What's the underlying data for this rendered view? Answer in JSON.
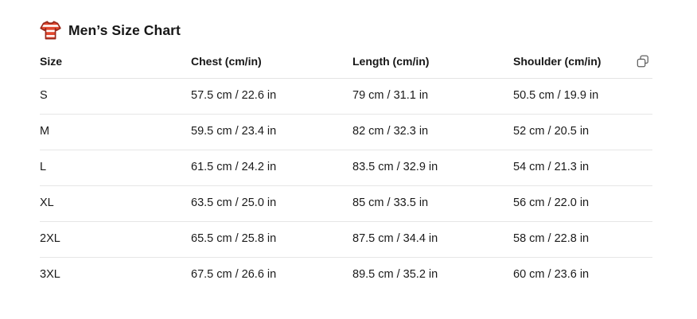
{
  "page": {
    "background": "#ffffff"
  },
  "header": {
    "icon": "tshirt-icon",
    "title": "Men’s Size Chart"
  },
  "table": {
    "headers": [
      "Size",
      "Chest (cm/in)",
      "Length (cm/in)",
      "Shoulder (cm/in)"
    ],
    "rows": [
      [
        "S",
        "57.5 cm / 22.6 in",
        "79 cm / 31.1 in",
        "50.5 cm / 19.9 in"
      ],
      [
        "M",
        "59.5 cm / 23.4 in",
        "82 cm / 32.3 in",
        "52 cm / 20.5 in"
      ],
      [
        "L",
        "61.5 cm / 24.2 in",
        "83.5 cm / 32.9 in",
        "54 cm / 21.3 in"
      ],
      [
        "XL",
        "63.5 cm / 25.0 in",
        "85 cm / 33.5 in",
        "56 cm / 22.0 in"
      ],
      [
        "2XL",
        "65.5 cm / 25.8 in",
        "87.5 cm / 34.4 in",
        "58 cm / 22.8 in"
      ],
      [
        "3XL",
        "67.5 cm / 26.6 in",
        "89.5 cm / 35.2 in",
        "60 cm / 23.6 in"
      ]
    ],
    "copy_icon": "copy-icon"
  },
  "colors": {
    "text": "#1a1a1a",
    "divider": "#e3e3e3",
    "copy_icon_stroke": "#5f5f5f",
    "shirt_red": "#e2492f",
    "shirt_outline": "#97281b"
  }
}
